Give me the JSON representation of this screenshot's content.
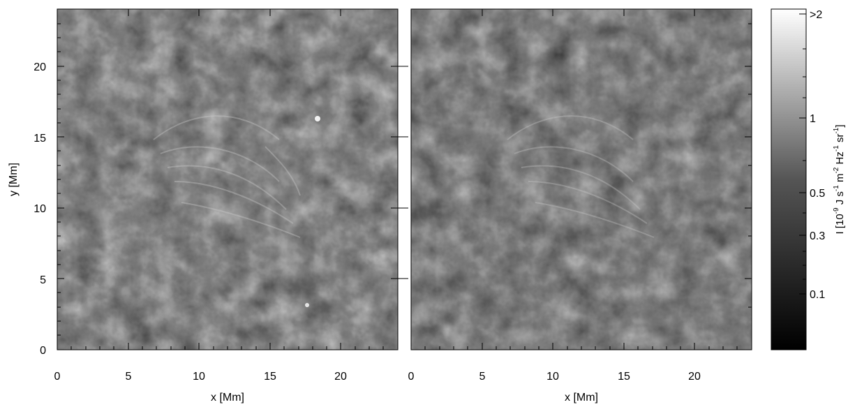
{
  "panels": [
    {
      "name": "left",
      "xlabel": "x [Mm]",
      "ylabel": "y [Mm]"
    },
    {
      "name": "right",
      "xlabel": "x [Mm]",
      "ylabel": ""
    }
  ],
  "x_ticks": [
    "0",
    "5",
    "10",
    "15",
    "20"
  ],
  "y_ticks": [
    "0",
    "5",
    "10",
    "15",
    "20"
  ],
  "colorbar": {
    "label_main": "I [10",
    "label_exp1": "-9",
    "label_mid1": " J s",
    "label_exp2": "-1",
    "label_mid2": " m",
    "label_exp3": "-2",
    "label_mid3": " Hz",
    "label_exp4": "-1",
    "label_mid4": " sr",
    "label_exp5": "-1",
    "label_end": "]",
    "ticks": [
      ">2",
      "1",
      "0.5",
      "0.3",
      "0.1"
    ],
    "ticks_values": [
      2,
      1,
      0.5,
      0.3,
      0.1
    ],
    "scale": "log",
    "colormap": "grayscale"
  },
  "colors": {
    "frame": "#000000",
    "background": "#ffffff"
  }
}
